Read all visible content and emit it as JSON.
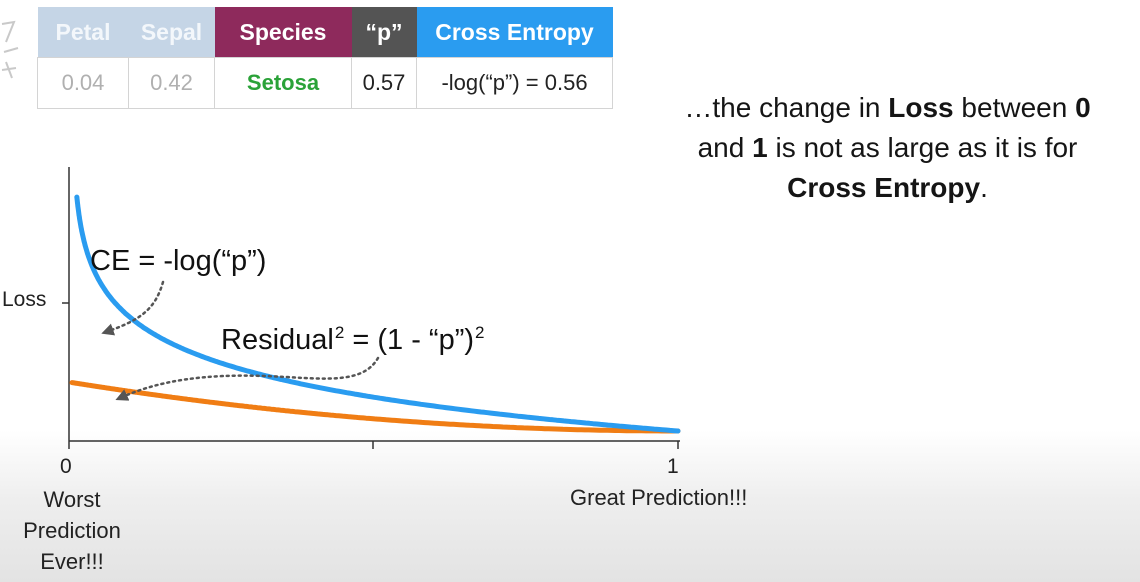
{
  "table": {
    "headers": {
      "petal": "Petal",
      "sepal": "Sepal",
      "species": "Species",
      "p": "“p”",
      "cross_entropy": "Cross Entropy"
    },
    "row": {
      "petal": "0.04",
      "sepal": "0.42",
      "species": "Setosa",
      "p": "0.57",
      "cross_entropy": "-log(“p”) = 0.56"
    },
    "colors": {
      "petal_sepal_header": "#c5d5e6",
      "species_header": "#8e2a5c",
      "p_header": "#545454",
      "cross_entropy_header": "#2a9cf0",
      "species_value": "#2aa238"
    }
  },
  "note": {
    "t1": "…the change in ",
    "b1": "Loss",
    "t2": " between ",
    "b2": "0",
    "t3": " and ",
    "b3": "1",
    "t4": " is not as large as it is for ",
    "b4": "Cross Entropy",
    "t5": "."
  },
  "chart_data": {
    "type": "line",
    "title": "",
    "xlabel": "",
    "ylabel": "Loss",
    "xlim": [
      0,
      1
    ],
    "x_ticks": [
      "0",
      "1"
    ],
    "x_end_labels": {
      "left": "Worst Prediction Ever!!!",
      "right": "Great Prediction!!!"
    },
    "series": [
      {
        "name": "CE = -log(“p”)",
        "function": "-log(p)",
        "color": "#2a9cf0",
        "x": [
          0.008,
          0.015,
          0.03,
          0.06,
          0.1,
          0.2,
          0.4,
          0.6,
          0.8,
          1.0
        ],
        "y": [
          4.83,
          4.2,
          3.51,
          2.81,
          2.3,
          1.61,
          0.92,
          0.51,
          0.22,
          0.0
        ]
      },
      {
        "name": "Residual² = (1 - “p”)²",
        "function": "(1-p)^2",
        "color": "#f07d14",
        "x": [
          0.0,
          0.2,
          0.4,
          0.6,
          0.8,
          1.0
        ],
        "y": [
          1.0,
          0.64,
          0.36,
          0.16,
          0.04,
          0.0
        ]
      }
    ],
    "annotations": {
      "ce": "CE = -log(“p”)",
      "residual_main": "Residual",
      "residual_sup1": "2",
      "residual_eq": " = (1 - “p”)",
      "residual_sup2": "2"
    },
    "grid": false,
    "legend": "none"
  }
}
